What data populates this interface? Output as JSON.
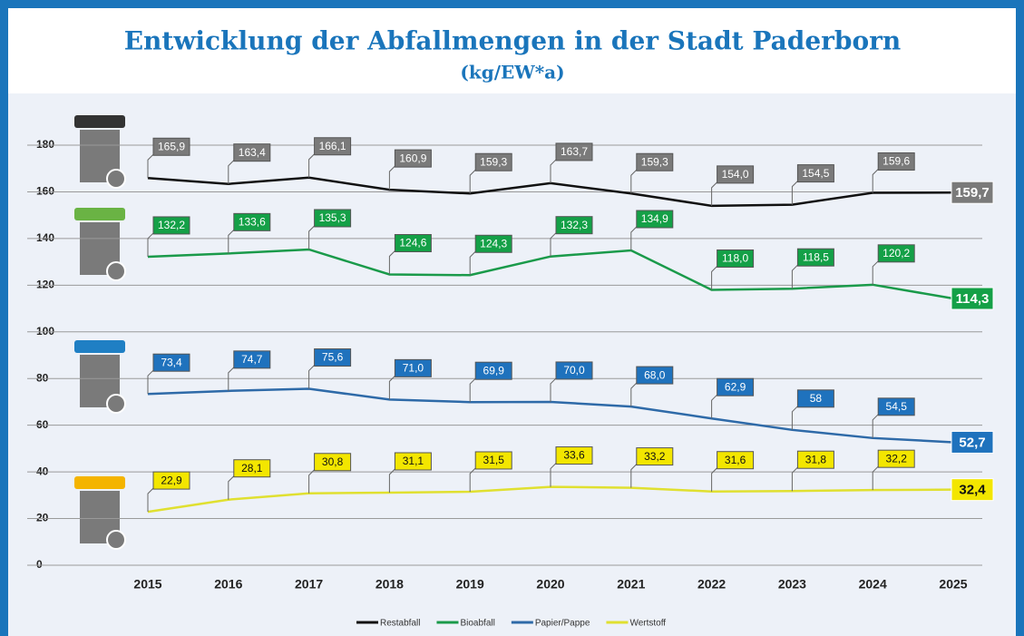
{
  "chart_data": {
    "type": "line",
    "title": "Entwicklung der Abfallmengen in der Stadt Paderborn",
    "subtitle": "(kg/EW*a)",
    "categories": [
      "2015",
      "2016",
      "2017",
      "2018",
      "2019",
      "2020",
      "2021",
      "2022",
      "2023",
      "2024",
      "2025"
    ],
    "series": [
      {
        "name": "Restabfall",
        "color": "#111111",
        "label_color": "#7a7a7a",
        "values": [
          165.9,
          163.4,
          166.1,
          160.9,
          159.3,
          163.7,
          159.3,
          154.0,
          154.5,
          159.6,
          159.7
        ],
        "value_labels": [
          "165,9",
          "163,4",
          "166,1",
          "160,9",
          "159,3",
          "163,7",
          "159,3",
          "154,0",
          "154,5",
          "159,6",
          "159,7"
        ]
      },
      {
        "name": "Bioabfall",
        "color": "#1a9a4a",
        "label_color": "#14a047",
        "values": [
          132.2,
          133.6,
          135.3,
          124.6,
          124.3,
          132.3,
          134.9,
          118.0,
          118.5,
          120.2,
          114.3
        ],
        "value_labels": [
          "132,2",
          "133,6",
          "135,3",
          "124,6",
          "124,3",
          "132,3",
          "134,9",
          "118,0",
          "118,5",
          "120,2",
          "114,3"
        ]
      },
      {
        "name": "Papier/Pappe",
        "color": "#2e6aa8",
        "label_color": "#1f72bd",
        "values": [
          73.4,
          74.7,
          75.6,
          71.0,
          69.9,
          70.0,
          68.0,
          62.9,
          58,
          54.5,
          52.7
        ],
        "value_labels": [
          "73,4",
          "74,7",
          "75,6",
          "71,0",
          "69,9",
          "70,0",
          "68,0",
          "62,9",
          "58",
          "54,5",
          "52,7"
        ]
      },
      {
        "name": "Wertstoff",
        "color": "#e0e030",
        "label_color": "#f3e600",
        "values": [
          22.9,
          28.1,
          30.8,
          31.1,
          31.5,
          33.6,
          33.2,
          31.6,
          31.8,
          32.2,
          32.4
        ],
        "value_labels": [
          "22,9",
          "28,1",
          "30,8",
          "31,1",
          "31,5",
          "33,6",
          "33,2",
          "31,6",
          "31,8",
          "32,2",
          "32,4"
        ]
      }
    ],
    "ylim": [
      0,
      180
    ],
    "yticks": [
      0,
      20,
      40,
      60,
      80,
      100,
      120,
      140,
      160,
      180
    ],
    "grid": true,
    "legend": "bottom"
  }
}
